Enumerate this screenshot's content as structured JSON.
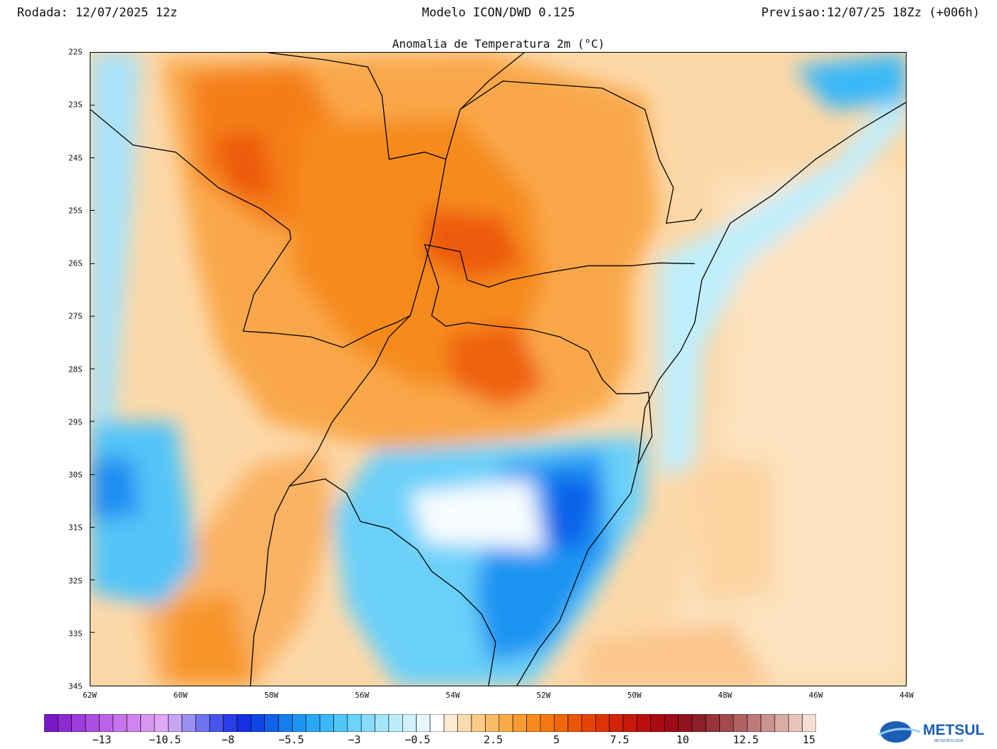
{
  "header": {
    "run": "Rodada: 12/07/2025 12z",
    "model": "Modelo ICON/DWD 0.125",
    "forecast": "Previsao:12/07/25 18Zz (+006h)",
    "title": "Anomalia de Temperatura 2m (°C)"
  },
  "map": {
    "lat_ticks": [
      "22S",
      "23S",
      "24S",
      "25S",
      "26S",
      "27S",
      "28S",
      "29S",
      "30S",
      "31S",
      "32S",
      "33S",
      "34S"
    ],
    "lon_ticks": [
      "62W",
      "60W",
      "58W",
      "56W",
      "54W",
      "52W",
      "50W",
      "48W",
      "46W",
      "44W"
    ]
  },
  "colorbar": {
    "labels": [
      "-13",
      "-10.5",
      "-8",
      "-5.5",
      "-3",
      "-0.5",
      "2.5",
      "5",
      "7.5",
      "10",
      "12.5",
      "15"
    ],
    "colors": [
      "#7a18c8",
      "#8d2ad2",
      "#9e3cdc",
      "#ad4fe3",
      "#bb62e8",
      "#c674ec",
      "#d084ef",
      "#d896f2",
      "#e0a8f4",
      "#c5a4f3",
      "#9a90f1",
      "#6e74ee",
      "#4755ea",
      "#2a3de6",
      "#1530e2",
      "#0d45e6",
      "#1062ea",
      "#167dee",
      "#1e94f2",
      "#29a8f5",
      "#3ab8f7",
      "#52c6f8",
      "#6cd2f9",
      "#88dcfa",
      "#a4e6fb",
      "#bcedfc",
      "#d2f3fd",
      "#e6f8fe",
      "#ffffff",
      "#fdecd3",
      "#fcdcae",
      "#fbcb88",
      "#fabb66",
      "#f9ab49",
      "#f89b30",
      "#f68b1c",
      "#f47a0f",
      "#f06808",
      "#ec5606",
      "#e64406",
      "#de3306",
      "#d42408",
      "#c8180b",
      "#bb0f0e",
      "#ac0a11",
      "#9e0a16",
      "#92131d",
      "#8c2028",
      "#963438",
      "#a24a4c",
      "#b06262",
      "#be7a78",
      "#cc938e",
      "#daaca4",
      "#e8c5bb",
      "#f4ddd3"
    ]
  },
  "logo": {
    "text": "METSUL",
    "subtext": "METEOROLOGIA"
  },
  "colors": {
    "warm": "#f68b1c",
    "cold": "#1e94f2"
  }
}
